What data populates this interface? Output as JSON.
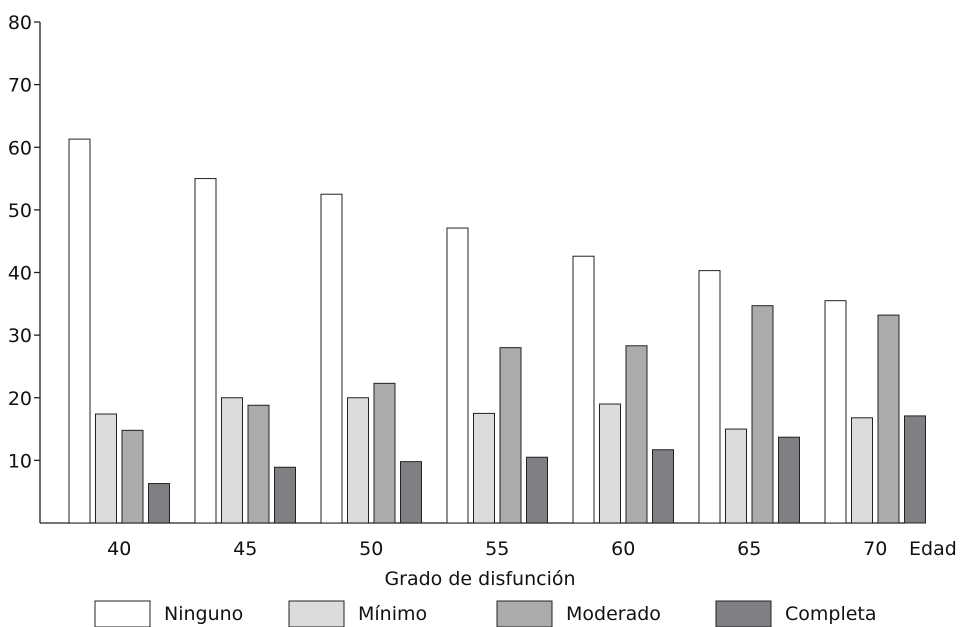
{
  "chart_data": {
    "type": "bar",
    "categories": [
      "40",
      "45",
      "50",
      "55",
      "60",
      "65",
      "70"
    ],
    "series": [
      {
        "name": "Ninguno",
        "color": "#ffffff",
        "values": [
          61.3,
          55.0,
          52.5,
          47.1,
          42.6,
          40.3,
          35.5
        ]
      },
      {
        "name": "Mínimo",
        "color": "#dcdcdc",
        "values": [
          17.4,
          20.0,
          20.0,
          17.5,
          19.0,
          15.0,
          16.8
        ]
      },
      {
        "name": "Moderado",
        "color": "#ababab",
        "values": [
          14.8,
          18.8,
          22.3,
          28.0,
          28.3,
          34.7,
          33.2
        ]
      },
      {
        "name": "Completa",
        "color": "#7f8083",
        "values": [
          6.3,
          8.9,
          9.8,
          10.5,
          11.7,
          13.7,
          17.1
        ]
      }
    ],
    "y_ticks": [
      10,
      20,
      30,
      40,
      50,
      60,
      70,
      80
    ],
    "ylim": [
      0,
      80
    ],
    "xlabel": "Grado de disfunción",
    "x_axis_unit_label": "Edad",
    "ylabel": "",
    "title": "",
    "legend_position": "bottom",
    "grid": false
  }
}
